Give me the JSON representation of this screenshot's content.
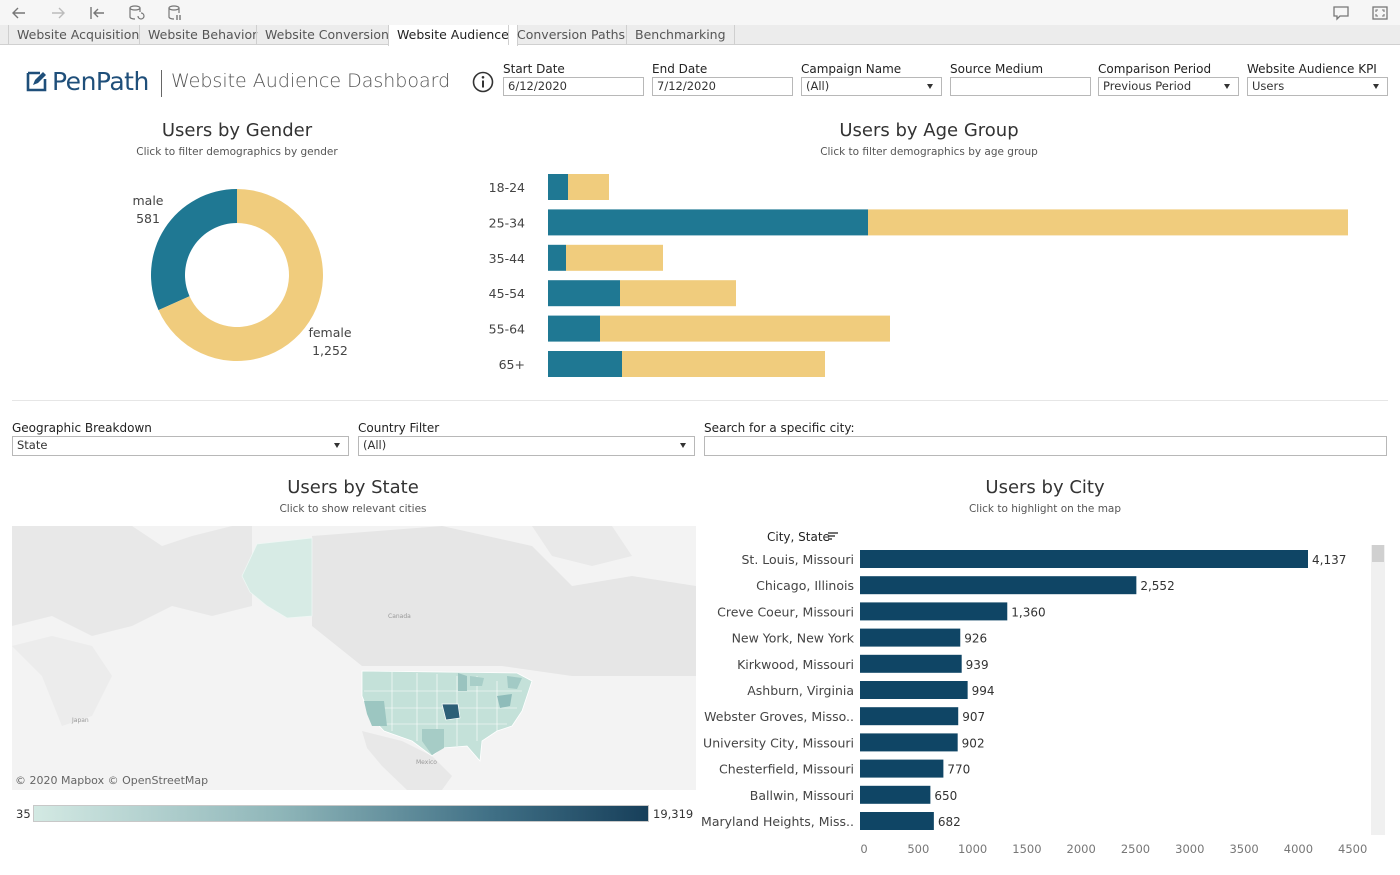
{
  "toolbar": {
    "icons": [
      "back-icon",
      "forward-icon",
      "first-page-icon",
      "refresh-data-icon",
      "pause-data-icon",
      "comment-icon",
      "fullscreen-icon"
    ]
  },
  "tabs": [
    {
      "label": "Website Acquisition",
      "active": false
    },
    {
      "label": "Website Behavior",
      "active": false
    },
    {
      "label": "Website Conversion",
      "active": false
    },
    {
      "label": "Website Audience",
      "active": true
    },
    {
      "label": "Conversion Paths",
      "active": false
    },
    {
      "label": "Benchmarking",
      "active": false
    }
  ],
  "header": {
    "logo_text": "PenPath",
    "title": "Website Audience Dashboard"
  },
  "filters": {
    "start_date": {
      "label": "Start Date",
      "value": "6/12/2020"
    },
    "end_date": {
      "label": "End Date",
      "value": "7/12/2020"
    },
    "campaign": {
      "label": "Campaign Name",
      "value": "(All)"
    },
    "source_medium": {
      "label": "Source Medium",
      "value": ""
    },
    "comparison": {
      "label": "Comparison Period",
      "value": "Previous Period"
    },
    "kpi": {
      "label": "Website Audience KPI",
      "value": "Users"
    },
    "geo": {
      "label": "Geographic Breakdown",
      "value": "State"
    },
    "country": {
      "label": "Country Filter",
      "value": "(All)"
    },
    "city_search": {
      "label": "Search for a specific city:",
      "value": ""
    }
  },
  "colors": {
    "teal": "#1f7893",
    "gold": "#f0cc7d",
    "navy": "#0f4565",
    "map_missouri": "#2d5f77",
    "map_us": "#c4e1d9",
    "map_alaska": "#d7ebe5"
  },
  "gender_chart": {
    "title": "Users by Gender",
    "subtitle": "Click to filter demographics by gender",
    "chart_data": {
      "type": "pie",
      "categories": [
        "male",
        "female"
      ],
      "values": [
        581,
        1252
      ],
      "labels": [
        "581",
        "1,252"
      ]
    }
  },
  "age_chart": {
    "title": "Users by Age Group",
    "subtitle": "Click to filter demographics by age group",
    "chart_data": {
      "type": "bar",
      "orientation": "horizontal",
      "stacked": true,
      "categories": [
        "18-24",
        "25-34",
        "35-44",
        "45-54",
        "55-64",
        "65+"
      ],
      "series": [
        {
          "name": "teal segment",
          "values": [
            20,
            320,
            18,
            72,
            52,
            74
          ]
        },
        {
          "name": "gold segment",
          "values": [
            41,
            480,
            97,
            116,
            290,
            203
          ]
        }
      ]
    }
  },
  "state_chart": {
    "title": "Users by State",
    "subtitle": "Click to show relevant cities",
    "map_credit": "© 2020 Mapbox  © OpenStreetMap",
    "map_labels": {
      "canada": "Canada",
      "japan": "Japan",
      "mexico": "Mexico"
    },
    "legend_min": "35",
    "legend_max": "19,319"
  },
  "city_chart": {
    "title": "Users by City",
    "subtitle": "Click to highlight on the map",
    "header": "City, State",
    "chart_data": {
      "type": "bar",
      "orientation": "horizontal",
      "categories": [
        "St. Louis, Missouri",
        "Chicago, Illinois",
        "Creve Coeur, Missouri",
        "New York, New York",
        "Kirkwood, Missouri",
        "Ashburn, Virginia",
        "Webster Groves, Misso..",
        "University City, Missouri",
        "Chesterfield, Missouri",
        "Ballwin, Missouri",
        "Maryland Heights, Miss.."
      ],
      "values": [
        4137,
        2552,
        1360,
        926,
        939,
        994,
        907,
        902,
        770,
        650,
        682
      ],
      "value_labels": [
        "4,137",
        "2,552",
        "1,360",
        "926",
        "939",
        "994",
        "907",
        "902",
        "770",
        "650",
        "682"
      ],
      "xlim": [
        0,
        4500
      ],
      "xticks": [
        "0",
        "500",
        "1000",
        "1500",
        "2000",
        "2500",
        "3000",
        "3500",
        "4000",
        "4500"
      ]
    }
  }
}
